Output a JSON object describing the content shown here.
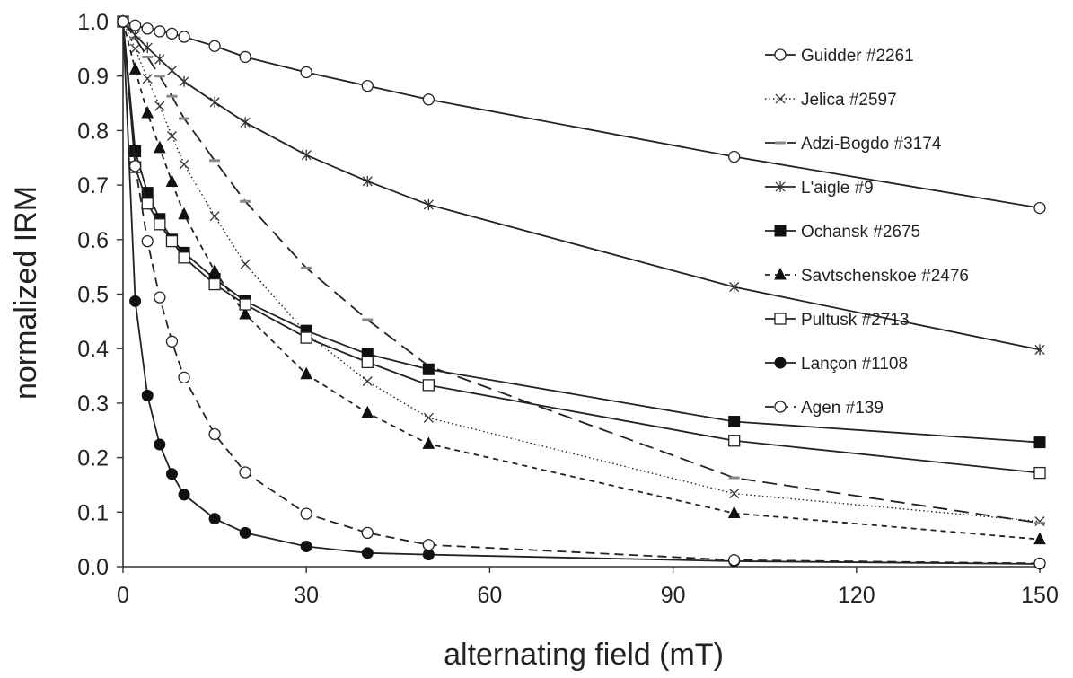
{
  "chart_data": {
    "type": "line",
    "xlabel": "alternating field (mT)",
    "ylabel": "normalized IRM",
    "xlim": [
      0,
      150
    ],
    "ylim": [
      0,
      1.0
    ],
    "xticks": [
      0,
      30,
      60,
      90,
      120,
      150
    ],
    "yticks": [
      "0.0",
      "0.1",
      "0.2",
      "0.3",
      "0.4",
      "0.5",
      "0.6",
      "0.7",
      "0.8",
      "0.9",
      "1.0"
    ],
    "grid": false,
    "legend_position": "top-right",
    "series": [
      {
        "name": "Guidder #2261",
        "marker": "open-circle",
        "line": "solid",
        "x": [
          0,
          2,
          4,
          6,
          8,
          10,
          15,
          20,
          30,
          40,
          50,
          100,
          150
        ],
        "y": [
          1.0,
          0.993,
          0.987,
          0.982,
          0.978,
          0.972,
          0.955,
          0.935,
          0.907,
          0.882,
          0.857,
          0.752,
          0.658
        ]
      },
      {
        "name": "Jelica #2597",
        "marker": "x",
        "line": "dotted",
        "x": [
          0,
          2,
          4,
          6,
          8,
          10,
          15,
          20,
          30,
          40,
          50,
          100,
          150
        ],
        "y": [
          1.0,
          0.95,
          0.895,
          0.845,
          0.79,
          0.738,
          0.643,
          0.555,
          0.428,
          0.34,
          0.273,
          0.134,
          0.083
        ]
      },
      {
        "name": "Adzi-Bogdo #3174",
        "marker": "dash",
        "line": "long-dash",
        "x": [
          0,
          2,
          4,
          6,
          8,
          10,
          15,
          20,
          30,
          40,
          50,
          100,
          150
        ],
        "y": [
          1.0,
          0.97,
          0.935,
          0.9,
          0.863,
          0.822,
          0.745,
          0.67,
          0.548,
          0.453,
          0.368,
          0.163,
          0.08
        ]
      },
      {
        "name": "L'aigle #9",
        "marker": "asterisk",
        "line": "solid",
        "x": [
          0,
          2,
          4,
          6,
          8,
          10,
          15,
          20,
          30,
          40,
          50,
          100,
          150
        ],
        "y": [
          1.0,
          0.975,
          0.952,
          0.931,
          0.91,
          0.89,
          0.852,
          0.815,
          0.755,
          0.707,
          0.664,
          0.513,
          0.398
        ]
      },
      {
        "name": "Ochansk #2675",
        "marker": "filled-square",
        "line": "solid",
        "x": [
          0,
          2,
          4,
          6,
          8,
          10,
          15,
          20,
          30,
          40,
          50,
          100,
          150
        ],
        "y": [
          1.0,
          0.762,
          0.686,
          0.638,
          0.6,
          0.576,
          0.528,
          0.487,
          0.433,
          0.39,
          0.362,
          0.266,
          0.228
        ]
      },
      {
        "name": "Savtschenskoe #2476",
        "marker": "filled-triangle",
        "line": "short-dash",
        "x": [
          0,
          2,
          4,
          6,
          8,
          10,
          15,
          20,
          30,
          40,
          50,
          100,
          150
        ],
        "y": [
          1.0,
          0.912,
          0.832,
          0.768,
          0.706,
          0.646,
          0.542,
          0.463,
          0.353,
          0.282,
          0.225,
          0.098,
          0.05
        ]
      },
      {
        "name": "Pultusk #2713",
        "marker": "open-square",
        "line": "solid",
        "x": [
          0,
          2,
          4,
          6,
          8,
          10,
          15,
          20,
          30,
          40,
          50,
          100,
          150
        ],
        "y": [
          1.0,
          0.733,
          0.666,
          0.628,
          0.597,
          0.567,
          0.518,
          0.481,
          0.42,
          0.375,
          0.333,
          0.231,
          0.172
        ]
      },
      {
        "name": "Lançon #1108",
        "marker": "filled-circle",
        "line": "solid",
        "x": [
          0,
          2,
          4,
          6,
          8,
          10,
          15,
          20,
          30,
          40,
          50,
          100,
          150
        ],
        "y": [
          1.0,
          0.487,
          0.314,
          0.224,
          0.17,
          0.132,
          0.088,
          0.062,
          0.037,
          0.025,
          0.022,
          0.01,
          0.005
        ]
      },
      {
        "name": "Agen #139",
        "marker": "open-circle",
        "line": "medium-dash",
        "x": [
          0,
          2,
          4,
          6,
          8,
          10,
          15,
          20,
          30,
          40,
          50,
          100,
          150
        ],
        "y": [
          1.0,
          0.735,
          0.597,
          0.494,
          0.413,
          0.347,
          0.243,
          0.173,
          0.097,
          0.062,
          0.04,
          0.012,
          0.006
        ]
      }
    ]
  }
}
